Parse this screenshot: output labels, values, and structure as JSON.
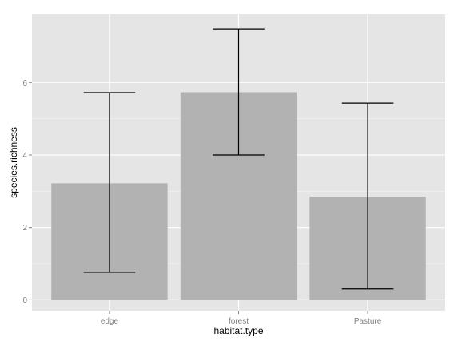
{
  "chart_data": {
    "type": "bar",
    "xlabel": "habitat.type",
    "ylabel": "species.richness",
    "categories": [
      "edge",
      "forest",
      "Pasture"
    ],
    "values": [
      3.22,
      5.73,
      2.85
    ],
    "error_bars": {
      "lower": [
        0.76,
        4.0,
        0.3
      ],
      "upper": [
        5.72,
        7.48,
        5.43
      ]
    },
    "ylim": [
      -0.3,
      7.88
    ],
    "y_ticks": [
      0,
      2,
      4,
      6
    ],
    "y_tick_labels": [
      "0",
      "2",
      "4",
      "6"
    ],
    "grid": true,
    "colors": {
      "panel_background": "#e5e5e5",
      "grid_major": "#ffffff",
      "grid_minor": "#f2f2f2",
      "bar_fill": "#b2b2b2",
      "error_bar": "#000000"
    }
  }
}
